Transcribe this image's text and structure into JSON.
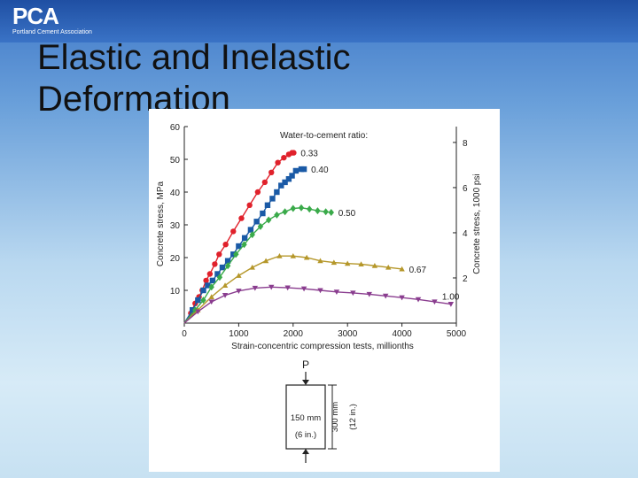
{
  "slide": {
    "logo_text": "PCA",
    "logo_subtext": "Portland Cement Association",
    "title_line1": "Elastic and Inelastic",
    "title_line2": "Deformation"
  },
  "chart_data": {
    "type": "line",
    "title": "",
    "xlabel": "Strain-concentric compression tests, millionths",
    "ylabel": "Concrete stress, MPa",
    "y2label": "Concrete stress, 1000 psi",
    "legend_title": "Water-to-cement ratio:",
    "xlim": [
      0,
      5000
    ],
    "ylim": [
      0,
      60
    ],
    "x_ticks": [
      "0",
      "1000",
      "2000",
      "3000",
      "4000",
      "5000"
    ],
    "y_ticks": [
      "10",
      "20",
      "30",
      "40",
      "50",
      "60"
    ],
    "y2_ticks": [
      "2",
      "4",
      "6",
      "8"
    ],
    "grid": false,
    "series": [
      {
        "name": "0.33",
        "color": "#e0212b",
        "marker": "circle",
        "x": [
          0,
          120,
          200,
          270,
          330,
          400,
          470,
          560,
          640,
          760,
          900,
          1050,
          1200,
          1350,
          1480,
          1600,
          1720,
          1830,
          1920,
          1980,
          2010
        ],
        "y": [
          0,
          3,
          6,
          8,
          10,
          13,
          15,
          18,
          21,
          24,
          28,
          32,
          36,
          40,
          43,
          46,
          49,
          50.5,
          51.5,
          52,
          52
        ]
      },
      {
        "name": "0.40",
        "color": "#1a5aa6",
        "marker": "square",
        "x": [
          0,
          150,
          250,
          350,
          430,
          520,
          610,
          700,
          800,
          900,
          1000,
          1110,
          1220,
          1330,
          1440,
          1530,
          1620,
          1700,
          1780,
          1850,
          1920,
          1980,
          2050,
          2150,
          2200
        ],
        "y": [
          0,
          4,
          7,
          10,
          11.5,
          13,
          15,
          17,
          19,
          21,
          23.5,
          26,
          28.5,
          31,
          33.5,
          36,
          38,
          40,
          42,
          43,
          44,
          45,
          46.5,
          47,
          47
        ]
      },
      {
        "name": "0.50",
        "color": "#3aaa4a",
        "marker": "diamond",
        "x": [
          0,
          200,
          350,
          500,
          650,
          800,
          950,
          1100,
          1250,
          1400,
          1550,
          1700,
          1850,
          2000,
          2150,
          2300,
          2450,
          2600,
          2700
        ],
        "y": [
          0,
          4,
          7,
          11,
          14,
          17.5,
          21,
          24,
          27,
          29.5,
          31.5,
          33,
          34,
          35,
          35.2,
          34.8,
          34.3,
          34,
          33.8
        ]
      },
      {
        "name": "0.67",
        "color": "#b5972a",
        "marker": "triangle-up",
        "x": [
          0,
          250,
          500,
          750,
          1000,
          1250,
          1500,
          1750,
          2000,
          2250,
          2500,
          2750,
          3000,
          3250,
          3500,
          3750,
          4000
        ],
        "y": [
          0,
          4,
          8,
          11.5,
          14.5,
          17,
          19,
          20.5,
          20.5,
          20,
          19,
          18.5,
          18.2,
          18,
          17.5,
          17,
          16.5
        ]
      },
      {
        "name": "1.00",
        "color": "#8a3d8f",
        "marker": "triangle-down",
        "x": [
          0,
          250,
          500,
          750,
          1000,
          1300,
          1600,
          1900,
          2200,
          2500,
          2800,
          3100,
          3400,
          3700,
          4000,
          4300,
          4600,
          4900
        ],
        "y": [
          0,
          3.5,
          6.5,
          8.5,
          9.8,
          10.7,
          11,
          10.8,
          10.5,
          10,
          9.5,
          9.2,
          8.8,
          8.3,
          7.8,
          7.2,
          6.5,
          5.8
        ]
      }
    ],
    "annotations": [
      "P",
      "150 mm",
      "(6 in.)",
      "300 mm",
      "(12 in.)"
    ]
  }
}
